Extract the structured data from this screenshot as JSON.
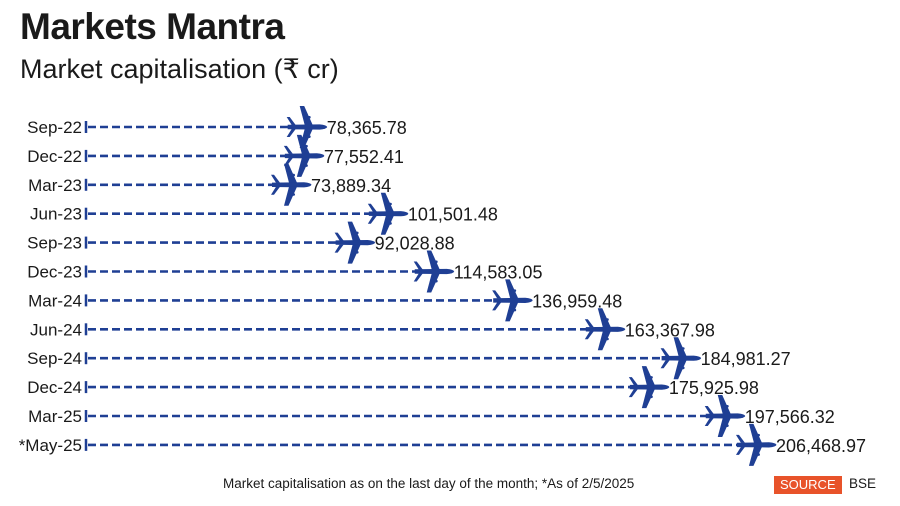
{
  "header": {
    "title": "Markets Mantra",
    "subtitle": "Market capitalisation (₹ cr)"
  },
  "footer": {
    "note": "Market capitalisation as on the last day of the month; *As of 2/5/2025",
    "source_label": "SOURCE",
    "source_name": "BSE"
  },
  "colors": {
    "accent": "#1f3f94",
    "source_badge": "#e8532a",
    "text": "#1a1a1a"
  },
  "icon": "airplane-icon",
  "chart_data": {
    "type": "bar",
    "style": "dashed-line lollipop with airplane markers",
    "title": "Markets Mantra",
    "subtitle": "Market capitalisation (₹ cr)",
    "xlabel": "",
    "ylabel": "",
    "orientation": "horizontal",
    "grid": false,
    "categories": [
      "Sep-22",
      "Dec-22",
      "Mar-23",
      "Jun-23",
      "Sep-23",
      "Dec-23",
      "Mar-24",
      "Jun-24",
      "Sep-24",
      "Dec-24",
      "Mar-25",
      "*May-25"
    ],
    "values": [
      78365.78,
      77552.41,
      73889.34,
      101501.48,
      92028.88,
      114583.05,
      136959.48,
      163367.98,
      184981.27,
      175925.98,
      197566.32,
      206468.97
    ],
    "value_labels": [
      "78,365.78",
      "77,552.41",
      "73,889.34",
      "101,501.48",
      "92,028.88",
      "114,583.05",
      "136,959.48",
      "163,367.98",
      "184,981.27",
      "175,925.98",
      "197,566.32",
      "206,468.97"
    ],
    "unit": "₹ cr"
  }
}
